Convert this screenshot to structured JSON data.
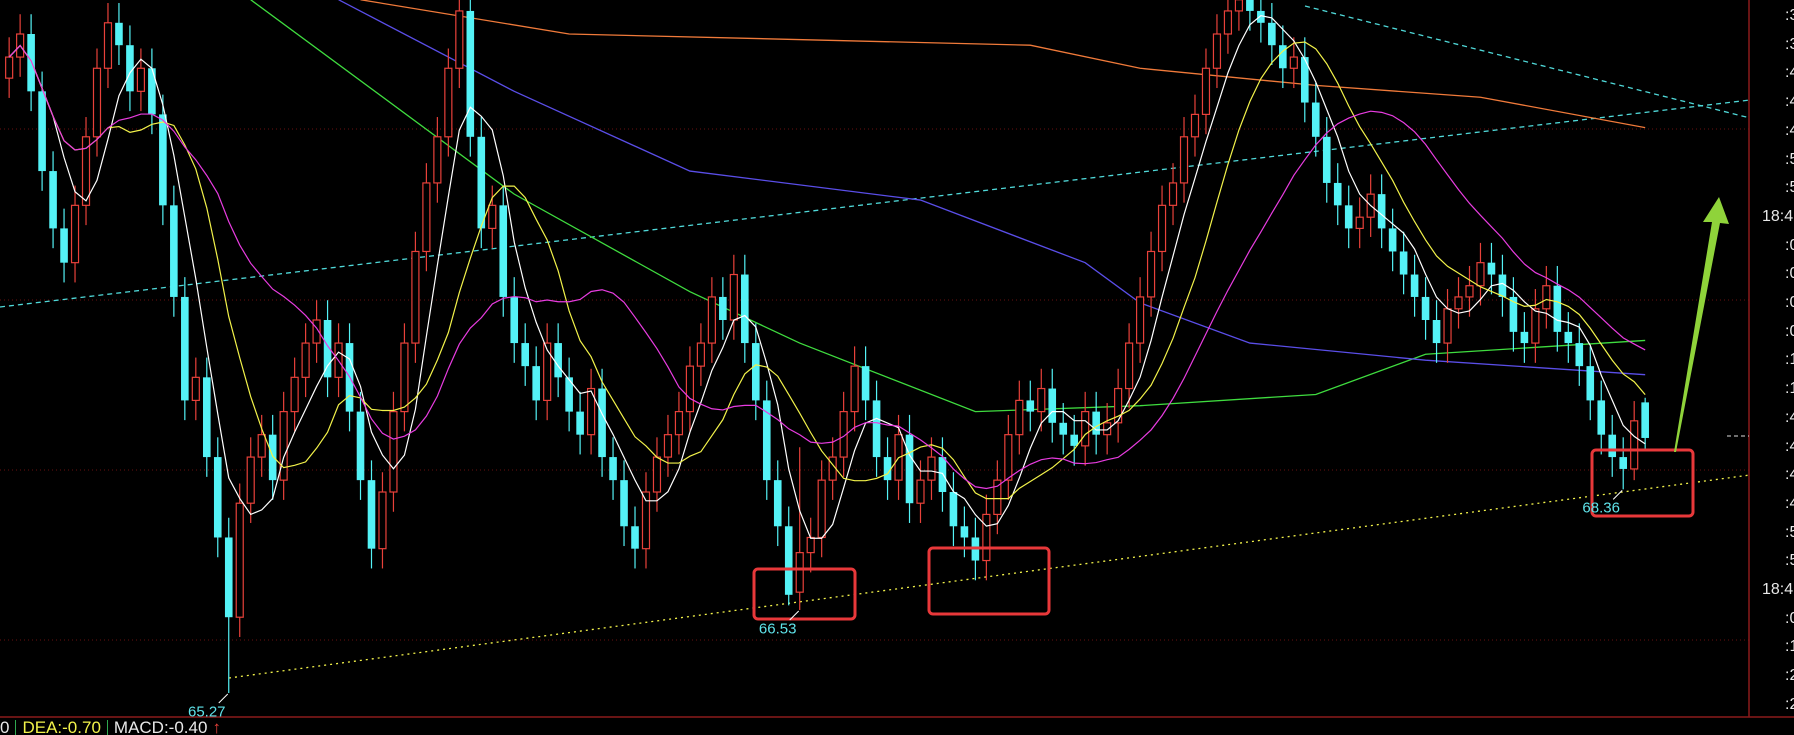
{
  "chart_data": {
    "type": "candlestick",
    "colors": {
      "up": "#e8413a",
      "down": "#54f2f6",
      "ma5": "#ffffff",
      "ma10": "#f2f24a",
      "ma20": "#e83ce0",
      "ma_green": "#3fdc3f",
      "ma_blue": "#5a4ee8",
      "ma_orange": "#f07a3a",
      "background": "#000000",
      "box": "#e8383a",
      "arrow": "#8fd33a"
    },
    "ohlc": [
      [
        74.6,
        75.22,
        74.3,
        74.92
      ],
      [
        74.92,
        75.57,
        74.62,
        75.27
      ],
      [
        75.27,
        75.57,
        74.1,
        74.4
      ],
      [
        74.4,
        74.7,
        72.89,
        73.19
      ],
      [
        73.19,
        73.49,
        72.02,
        72.32
      ],
      [
        72.32,
        72.62,
        71.5,
        71.8
      ],
      [
        71.8,
        72.97,
        71.5,
        72.67
      ],
      [
        72.67,
        74.01,
        72.37,
        73.71
      ],
      [
        73.71,
        75.05,
        73.41,
        74.75
      ],
      [
        74.75,
        75.74,
        74.45,
        75.44
      ],
      [
        75.44,
        75.74,
        74.8,
        75.1
      ],
      [
        75.1,
        75.4,
        74.1,
        74.4
      ],
      [
        74.4,
        75.05,
        74.1,
        74.75
      ],
      [
        74.75,
        75.05,
        73.75,
        74.05
      ],
      [
        74.05,
        74.35,
        72.37,
        72.67
      ],
      [
        72.67,
        72.97,
        70.98,
        71.28
      ],
      [
        71.28,
        71.58,
        69.41,
        69.71
      ],
      [
        69.71,
        70.36,
        69.41,
        70.06
      ],
      [
        70.06,
        70.36,
        68.55,
        68.85
      ],
      [
        68.85,
        69.15,
        67.33,
        67.63
      ],
      [
        67.63,
        67.93,
        65.27,
        66.42
      ],
      [
        66.42,
        68.45,
        66.12,
        68.15
      ],
      [
        68.15,
        69.15,
        67.85,
        68.85
      ],
      [
        68.85,
        69.49,
        68.55,
        69.19
      ],
      [
        69.19,
        69.49,
        68.2,
        68.5
      ],
      [
        68.5,
        69.84,
        68.2,
        69.54
      ],
      [
        69.54,
        70.36,
        69.24,
        70.06
      ],
      [
        70.06,
        70.88,
        69.76,
        70.58
      ],
      [
        70.58,
        71.23,
        70.28,
        70.93
      ],
      [
        70.93,
        71.23,
        69.76,
        70.06
      ],
      [
        70.06,
        70.88,
        69.76,
        70.58
      ],
      [
        70.58,
        70.88,
        69.24,
        69.54
      ],
      [
        69.54,
        69.84,
        68.2,
        68.5
      ],
      [
        68.5,
        68.8,
        67.16,
        67.46
      ],
      [
        67.46,
        68.62,
        67.16,
        68.32
      ],
      [
        68.32,
        69.84,
        68.02,
        69.54
      ],
      [
        69.54,
        70.88,
        69.24,
        70.58
      ],
      [
        70.58,
        72.27,
        70.28,
        71.97
      ],
      [
        71.97,
        73.31,
        71.67,
        73.01
      ],
      [
        73.01,
        74.01,
        72.71,
        73.71
      ],
      [
        73.71,
        75.05,
        73.41,
        74.75
      ],
      [
        74.75,
        75.92,
        74.45,
        75.62
      ],
      [
        75.62,
        75.92,
        73.41,
        73.71
      ],
      [
        73.71,
        74.01,
        72.02,
        72.32
      ],
      [
        72.32,
        72.97,
        72.02,
        72.67
      ],
      [
        72.67,
        72.97,
        70.98,
        71.28
      ],
      [
        71.28,
        71.58,
        70.28,
        70.58
      ],
      [
        70.58,
        70.88,
        69.93,
        70.23
      ],
      [
        70.23,
        70.53,
        69.41,
        69.71
      ],
      [
        69.71,
        70.88,
        69.41,
        70.58
      ],
      [
        70.58,
        70.88,
        69.76,
        70.06
      ],
      [
        70.06,
        70.36,
        69.24,
        69.54
      ],
      [
        69.54,
        69.84,
        68.89,
        69.19
      ],
      [
        69.19,
        70.19,
        68.89,
        69.89
      ],
      [
        69.89,
        70.19,
        68.55,
        68.85
      ],
      [
        68.85,
        69.15,
        68.2,
        68.5
      ],
      [
        68.5,
        68.8,
        67.5,
        67.8
      ],
      [
        67.8,
        68.1,
        67.16,
        67.46
      ],
      [
        67.46,
        68.62,
        67.16,
        68.32
      ],
      [
        68.32,
        69.15,
        68.02,
        68.85
      ],
      [
        68.85,
        69.49,
        68.55,
        69.19
      ],
      [
        69.19,
        69.84,
        68.89,
        69.54
      ],
      [
        69.54,
        70.53,
        69.24,
        70.23
      ],
      [
        70.23,
        70.88,
        69.93,
        70.58
      ],
      [
        70.58,
        71.58,
        70.28,
        71.28
      ],
      [
        71.28,
        71.58,
        70.63,
        70.93
      ],
      [
        70.93,
        71.92,
        70.63,
        71.62
      ],
      [
        71.62,
        71.92,
        70.28,
        70.58
      ],
      [
        70.58,
        70.88,
        69.41,
        69.71
      ],
      [
        69.71,
        70.01,
        68.2,
        68.5
      ],
      [
        68.5,
        68.8,
        67.5,
        67.8
      ],
      [
        67.8,
        68.1,
        66.6,
        66.76
      ],
      [
        66.8,
        69.0,
        66.53,
        67.4
      ],
      [
        67.4,
        67.93,
        67.1,
        67.63
      ],
      [
        67.63,
        68.8,
        67.33,
        68.5
      ],
      [
        68.5,
        69.15,
        68.2,
        68.85
      ],
      [
        68.85,
        69.84,
        68.55,
        69.54
      ],
      [
        69.54,
        70.53,
        69.24,
        70.23
      ],
      [
        70.23,
        70.53,
        69.41,
        69.71
      ],
      [
        69.71,
        70.01,
        68.55,
        68.85
      ],
      [
        68.85,
        69.15,
        68.2,
        68.5
      ],
      [
        68.5,
        69.49,
        68.2,
        69.19
      ],
      [
        69.19,
        69.49,
        67.85,
        68.15
      ],
      [
        68.15,
        68.8,
        67.85,
        68.5
      ],
      [
        68.5,
        69.15,
        68.2,
        68.85
      ],
      [
        68.85,
        69.15,
        68.02,
        68.32
      ],
      [
        68.32,
        68.62,
        67.5,
        67.8
      ],
      [
        67.8,
        68.1,
        67.33,
        67.63
      ],
      [
        67.63,
        67.93,
        66.98,
        67.28
      ],
      [
        67.28,
        68.28,
        66.98,
        67.98
      ],
      [
        67.98,
        68.8,
        67.68,
        68.5
      ],
      [
        68.5,
        69.49,
        68.2,
        69.19
      ],
      [
        69.19,
        70.01,
        68.89,
        69.71
      ],
      [
        69.71,
        70.01,
        69.24,
        69.54
      ],
      [
        69.54,
        70.19,
        69.24,
        69.89
      ],
      [
        69.89,
        70.19,
        69.07,
        69.37
      ],
      [
        69.37,
        69.67,
        68.89,
        69.19
      ],
      [
        69.19,
        69.49,
        68.72,
        69.02
      ],
      [
        69.02,
        69.84,
        68.72,
        69.54
      ],
      [
        69.54,
        69.84,
        68.89,
        69.19
      ],
      [
        69.19,
        69.67,
        68.89,
        69.37
      ],
      [
        69.37,
        70.19,
        69.07,
        69.89
      ],
      [
        69.89,
        70.88,
        69.59,
        70.58
      ],
      [
        70.58,
        71.58,
        70.28,
        71.28
      ],
      [
        71.28,
        72.27,
        70.98,
        71.97
      ],
      [
        71.97,
        72.97,
        71.67,
        72.67
      ],
      [
        72.67,
        73.31,
        72.37,
        73.01
      ],
      [
        73.01,
        74.01,
        72.71,
        73.71
      ],
      [
        73.71,
        74.35,
        73.41,
        74.05
      ],
      [
        74.05,
        75.05,
        73.75,
        74.75
      ],
      [
        74.75,
        75.57,
        74.45,
        75.27
      ],
      [
        75.27,
        75.92,
        74.97,
        75.62
      ],
      [
        75.62,
        76.09,
        75.32,
        75.79
      ],
      [
        75.79,
        76.09,
        75.32,
        75.62
      ],
      [
        75.62,
        75.92,
        75.14,
        75.44
      ],
      [
        75.44,
        75.74,
        74.8,
        75.1
      ],
      [
        75.1,
        75.4,
        74.45,
        74.75
      ],
      [
        74.75,
        75.22,
        74.45,
        74.92
      ],
      [
        74.92,
        75.22,
        73.93,
        74.23
      ],
      [
        74.23,
        74.53,
        73.41,
        73.71
      ],
      [
        73.71,
        74.01,
        72.71,
        73.01
      ],
      [
        73.01,
        73.31,
        72.37,
        72.67
      ],
      [
        72.67,
        72.97,
        72.02,
        72.32
      ],
      [
        72.32,
        72.79,
        72.02,
        72.49
      ],
      [
        72.49,
        73.14,
        72.19,
        72.84
      ],
      [
        72.84,
        73.14,
        72.02,
        72.32
      ],
      [
        72.32,
        72.62,
        71.67,
        71.97
      ],
      [
        71.97,
        72.27,
        71.32,
        71.62
      ],
      [
        71.62,
        71.92,
        70.98,
        71.28
      ],
      [
        71.28,
        71.58,
        70.63,
        70.93
      ],
      [
        70.93,
        71.23,
        70.28,
        70.58
      ],
      [
        70.58,
        71.4,
        70.28,
        71.1
      ],
      [
        71.1,
        71.58,
        70.8,
        71.28
      ],
      [
        71.28,
        71.75,
        70.98,
        71.45
      ],
      [
        71.45,
        72.1,
        71.15,
        71.8
      ],
      [
        71.8,
        72.1,
        71.32,
        71.62
      ],
      [
        71.62,
        71.92,
        70.98,
        71.28
      ],
      [
        71.28,
        71.58,
        70.45,
        70.75
      ],
      [
        70.75,
        71.05,
        70.28,
        70.58
      ],
      [
        70.58,
        71.4,
        70.28,
        71.1
      ],
      [
        71.1,
        71.75,
        70.8,
        71.45
      ],
      [
        71.45,
        71.75,
        70.45,
        70.75
      ],
      [
        70.75,
        71.05,
        70.28,
        70.58
      ],
      [
        70.58,
        70.88,
        69.93,
        70.23
      ],
      [
        70.23,
        70.53,
        69.41,
        69.71
      ],
      [
        69.71,
        70.01,
        68.89,
        69.19
      ],
      [
        69.19,
        69.49,
        68.55,
        68.85
      ],
      [
        68.85,
        69.15,
        68.36,
        68.67
      ],
      [
        68.67,
        69.7,
        68.5,
        69.4
      ],
      [
        69.68,
        69.75,
        68.95,
        69.14
      ]
    ],
    "long_ma_lines": [
      {
        "color_key": "ma_green",
        "points": [
          [
            22,
            75.79
          ],
          [
            46,
            72.84
          ],
          [
            62,
            71.36
          ],
          [
            72,
            70.58
          ],
          [
            88,
            69.54
          ],
          [
            103,
            69.63
          ],
          [
            119,
            69.8
          ],
          [
            129,
            70.41
          ],
          [
            149,
            70.62
          ]
        ]
      },
      {
        "color_key": "ma_blue",
        "points": [
          [
            30,
            75.79
          ],
          [
            46,
            74.4
          ],
          [
            62,
            73.19
          ],
          [
            83,
            72.75
          ],
          [
            98,
            71.8
          ],
          [
            103,
            71.19
          ],
          [
            113,
            70.58
          ],
          [
            129,
            70.32
          ],
          [
            149,
            70.1
          ]
        ]
      },
      {
        "color_key": "ma_orange",
        "points": [
          [
            32,
            75.79
          ],
          [
            51,
            75.27
          ],
          [
            93,
            75.1
          ],
          [
            103,
            74.75
          ],
          [
            119,
            74.49
          ],
          [
            134,
            74.31
          ],
          [
            149,
            73.85
          ]
        ]
      }
    ],
    "annotations": {
      "low_labels": [
        {
          "text": "65.27",
          "index": 20
        },
        {
          "text": "66.53",
          "index": 72
        },
        {
          "text": "68.36",
          "index": 147
        }
      ]
    },
    "ylim": [
      64.9,
      75.79
    ],
    "grid": true
  },
  "right_axis": {
    "labels": [
      ":3",
      ":3",
      ":4",
      ":4",
      ":4",
      ":5",
      ":5",
      "18:4",
      ":0",
      ":0",
      ":0",
      ":0",
      ":1",
      ":1",
      ":4",
      ":4",
      ":4",
      ":4",
      ":5",
      ":5",
      "18:4",
      ":0",
      ":1",
      ":2",
      ":2"
    ]
  },
  "indicator_bar": {
    "prefix": "0",
    "dea": "DEA:-0.70",
    "macd": "MACD:-0.40",
    "arrow": "↑"
  }
}
